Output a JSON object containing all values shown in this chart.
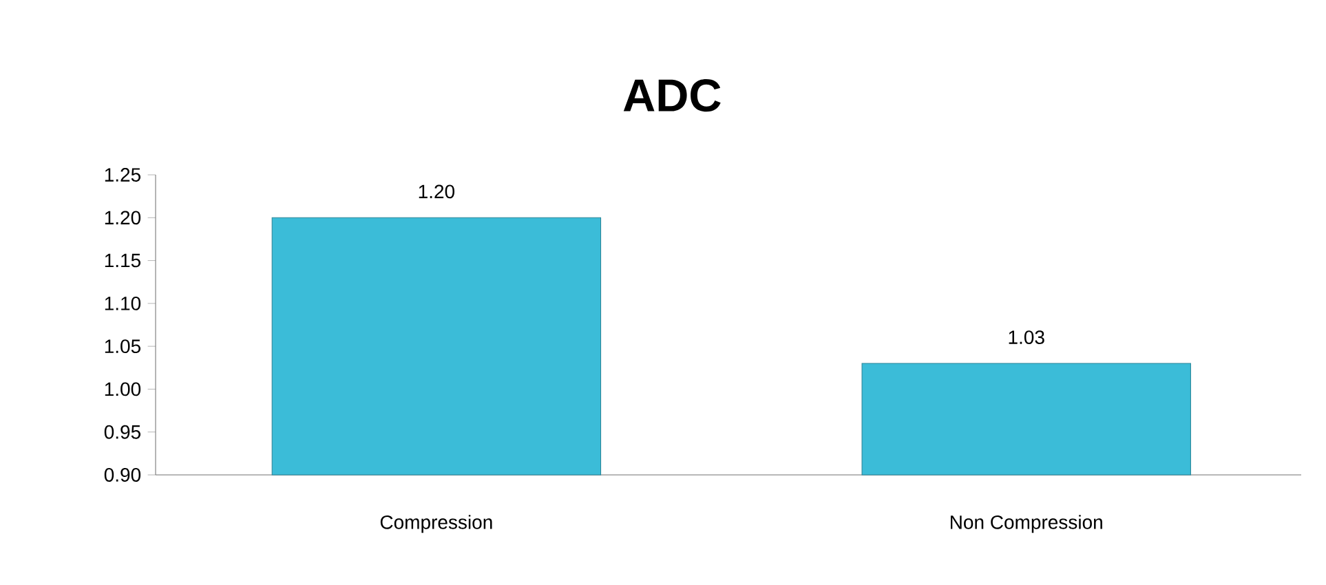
{
  "chart_data": {
    "type": "bar",
    "title": "ADC",
    "categories": [
      "Compression",
      "Non Compression"
    ],
    "values": [
      1.2,
      1.03
    ],
    "value_labels": [
      "1.20",
      "1.03"
    ],
    "color": "#3bbcd8",
    "ylim": [
      0.9,
      1.25
    ],
    "yticks": [
      {
        "value": 0.9,
        "label": "0.90"
      },
      {
        "value": 0.95,
        "label": "0.95"
      },
      {
        "value": 1.0,
        "label": "1.00"
      },
      {
        "value": 1.05,
        "label": "1.05"
      },
      {
        "value": 1.1,
        "label": "1.10"
      },
      {
        "value": 1.15,
        "label": "1.15"
      },
      {
        "value": 1.2,
        "label": "1.20"
      },
      {
        "value": 1.25,
        "label": "1.25"
      }
    ],
    "grid": false
  }
}
